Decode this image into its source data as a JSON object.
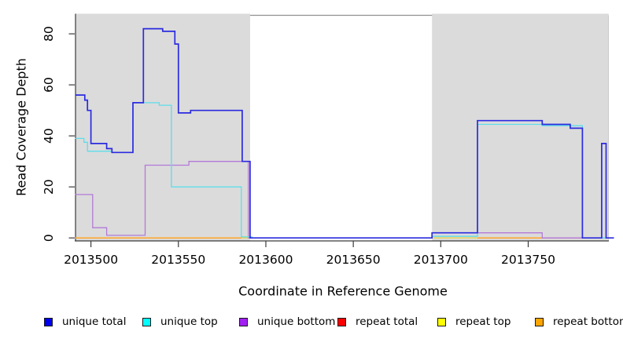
{
  "figure": {
    "xlabel": "Coordinate in Reference Genome",
    "ylabel": "Read Coverage Depth"
  },
  "chart_data": {
    "type": "line",
    "subtype": "step-coverage",
    "title": "",
    "xlabel": "Coordinate in Reference Genome",
    "ylabel": "Read Coverage Depth",
    "xlim": [
      2013491,
      2013799
    ],
    "ylim": [
      0,
      87
    ],
    "xticks": [
      2013500,
      2013550,
      2013600,
      2013650,
      2013700,
      2013750
    ],
    "yticks": [
      0,
      20,
      40,
      60,
      80
    ],
    "grid": false,
    "background_color": "#ffffff",
    "shaded_region_color": "#dbdbdb",
    "shaded_regions": [
      [
        2013491,
        2013591
      ],
      [
        2013695,
        2013796
      ]
    ],
    "series": [
      {
        "name": "repeat total",
        "line_color": "#f05555",
        "width": 1.2,
        "segments": [
          [
            [
              2013491,
              0
            ],
            [
              2013799,
              0
            ]
          ]
        ]
      },
      {
        "name": "repeat top",
        "line_color": "#ecec4a",
        "width": 1.2,
        "segments": [
          [
            [
              2013491,
              0
            ],
            [
              2013758,
              0
            ]
          ]
        ]
      },
      {
        "name": "repeat bottom",
        "line_color": "#ffa428",
        "width": 1.5,
        "segments": [
          [
            [
              2013491,
              0
            ],
            [
              2013586,
              0
            ]
          ],
          [
            [
              2013721,
              0
            ],
            [
              2013758,
              0
            ]
          ]
        ]
      },
      {
        "name": "unique bottom",
        "line_color": "#b27ad8",
        "width": 1.3,
        "segments": [
          [
            [
              2013491,
              17
            ],
            [
              2013501,
              4
            ],
            [
              2013509,
              1
            ],
            [
              2013531,
              28.5
            ],
            [
              2013556,
              30
            ],
            [
              2013590,
              0
            ],
            [
              2013695,
              2
            ],
            [
              2013758,
              0
            ],
            [
              2013799,
              0
            ]
          ]
        ]
      },
      {
        "name": "unique top",
        "line_color": "#5fdde9",
        "width": 1.3,
        "segments": [
          [
            [
              2013491,
              39
            ],
            [
              2013496,
              37.5
            ],
            [
              2013498,
              34
            ],
            [
              2013512,
              33.5
            ],
            [
              2013524,
              53
            ],
            [
              2013539,
              52
            ],
            [
              2013546,
              20
            ],
            [
              2013586,
              0.4
            ],
            [
              2013592,
              0
            ],
            [
              2013695,
              0.6
            ],
            [
              2013721,
              44.5
            ],
            [
              2013758,
              44
            ],
            [
              2013781,
              0
            ],
            [
              2013799,
              0
            ]
          ]
        ]
      },
      {
        "name": "unique total",
        "line_color": "#2b2be0",
        "width": 1.7,
        "segments": [
          [
            [
              2013491,
              56
            ],
            [
              2013496.5,
              54
            ],
            [
              2013498,
              50
            ],
            [
              2013500,
              37
            ],
            [
              2013509,
              35
            ],
            [
              2013512,
              33.5
            ],
            [
              2013524,
              53
            ],
            [
              2013530,
              82
            ],
            [
              2013541,
              81
            ],
            [
              2013548,
              76
            ],
            [
              2013550,
              49
            ],
            [
              2013557,
              50
            ],
            [
              2013586.5,
              30
            ],
            [
              2013591,
              0
            ],
            [
              2013695,
              2
            ],
            [
              2013721,
              46
            ],
            [
              2013758,
              44.5
            ],
            [
              2013774,
              43
            ],
            [
              2013781,
              0
            ],
            [
              2013792,
              37
            ],
            [
              2013794.5,
              0
            ],
            [
              2013799,
              0
            ]
          ]
        ]
      }
    ],
    "legend": {
      "position": "bottom",
      "items": [
        {
          "label": "unique total",
          "color": "#0000ee"
        },
        {
          "label": "unique top",
          "color": "#00ffff"
        },
        {
          "label": "unique bottom",
          "color": "#a020f0"
        },
        {
          "label": "repeat total",
          "color": "#ff0000"
        },
        {
          "label": "repeat top",
          "color": "#ffff00"
        },
        {
          "label": "repeat bottom",
          "color": "#ffa500"
        }
      ]
    }
  }
}
